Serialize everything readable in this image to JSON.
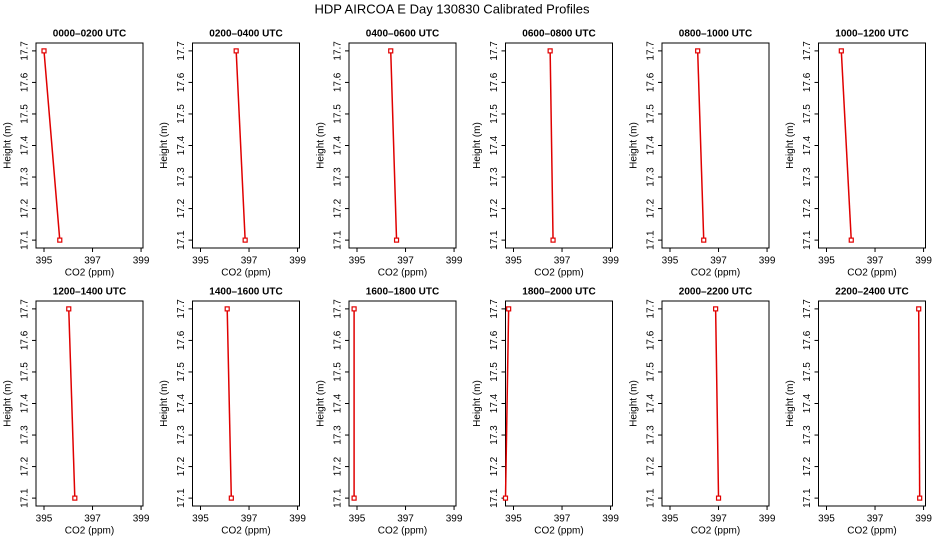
{
  "title": "HDP AIRCOA E  Day 130830  Calibrated Profiles",
  "chart_data": [
    {
      "type": "line",
      "title": "0000–0200 UTC",
      "x_label": "CO2 (ppm)",
      "y_label": "Height (m)",
      "x": [
        395.0,
        395.65
      ],
      "values": [
        17.7,
        17.1
      ],
      "color": "#e00000",
      "xlim": [
        394.67,
        399.08
      ],
      "ylim": [
        17.075,
        17.725
      ],
      "xticks": [
        395,
        397,
        399
      ],
      "yticks": [
        17.1,
        17.2,
        17.3,
        17.4,
        17.5,
        17.6,
        17.7
      ]
    },
    {
      "type": "line",
      "title": "0200–0400 UTC",
      "x_label": "CO2 (ppm)",
      "y_label": "Height (m)",
      "x": [
        396.47,
        396.84
      ],
      "values": [
        17.7,
        17.1
      ],
      "color": "#e00000",
      "xlim": [
        394.67,
        399.08
      ],
      "ylim": [
        17.075,
        17.725
      ],
      "xticks": [
        395,
        397,
        399
      ],
      "yticks": [
        17.1,
        17.2,
        17.3,
        17.4,
        17.5,
        17.6,
        17.7
      ]
    },
    {
      "type": "line",
      "title": "0400–0600 UTC",
      "x_label": "CO2 (ppm)",
      "y_label": "Height (m)",
      "x": [
        396.39,
        396.63
      ],
      "values": [
        17.7,
        17.1
      ],
      "color": "#e00000",
      "xlim": [
        394.67,
        399.08
      ],
      "ylim": [
        17.075,
        17.725
      ],
      "xticks": [
        395,
        397,
        399
      ],
      "yticks": [
        17.1,
        17.2,
        17.3,
        17.4,
        17.5,
        17.6,
        17.7
      ]
    },
    {
      "type": "line",
      "title": "0600–0800 UTC",
      "x_label": "CO2 (ppm)",
      "y_label": "Height (m)",
      "x": [
        396.51,
        396.63
      ],
      "values": [
        17.7,
        17.1
      ],
      "color": "#e00000",
      "xlim": [
        394.67,
        399.08
      ],
      "ylim": [
        17.075,
        17.725
      ],
      "xticks": [
        395,
        397,
        399
      ],
      "yticks": [
        17.1,
        17.2,
        17.3,
        17.4,
        17.5,
        17.6,
        17.7
      ]
    },
    {
      "type": "line",
      "title": "0800–1000 UTC",
      "x_label": "CO2 (ppm)",
      "y_label": "Height (m)",
      "x": [
        396.14,
        396.39
      ],
      "values": [
        17.7,
        17.1
      ],
      "color": "#e00000",
      "xlim": [
        394.67,
        399.08
      ],
      "ylim": [
        17.075,
        17.725
      ],
      "xticks": [
        395,
        397,
        399
      ],
      "yticks": [
        17.1,
        17.2,
        17.3,
        17.4,
        17.5,
        17.6,
        17.7
      ]
    },
    {
      "type": "line",
      "title": "1000–1200 UTC",
      "x_label": "CO2 (ppm)",
      "y_label": "Height (m)",
      "x": [
        395.61,
        396.02
      ],
      "values": [
        17.7,
        17.1
      ],
      "color": "#e00000",
      "xlim": [
        394.67,
        399.08
      ],
      "ylim": [
        17.075,
        17.725
      ],
      "xticks": [
        395,
        397,
        399
      ],
      "yticks": [
        17.1,
        17.2,
        17.3,
        17.4,
        17.5,
        17.6,
        17.7
      ]
    },
    {
      "type": "line",
      "title": "1200–1400 UTC",
      "x_label": "CO2 (ppm)",
      "y_label": "Height (m)",
      "x": [
        396.02,
        396.27
      ],
      "values": [
        17.7,
        17.1
      ],
      "color": "#e00000",
      "xlim": [
        394.67,
        399.08
      ],
      "ylim": [
        17.075,
        17.725
      ],
      "xticks": [
        395,
        397,
        399
      ],
      "yticks": [
        17.1,
        17.2,
        17.3,
        17.4,
        17.5,
        17.6,
        17.7
      ]
    },
    {
      "type": "line",
      "title": "1400–1600 UTC",
      "x_label": "CO2 (ppm)",
      "y_label": "Height (m)",
      "x": [
        396.1,
        396.27
      ],
      "values": [
        17.7,
        17.1
      ],
      "color": "#e00000",
      "xlim": [
        394.67,
        399.08
      ],
      "ylim": [
        17.075,
        17.725
      ],
      "xticks": [
        395,
        397,
        399
      ],
      "yticks": [
        17.1,
        17.2,
        17.3,
        17.4,
        17.5,
        17.6,
        17.7
      ]
    },
    {
      "type": "line",
      "title": "1600–1800 UTC",
      "x_label": "CO2 (ppm)",
      "y_label": "Height (m)",
      "x": [
        394.88,
        394.88
      ],
      "values": [
        17.7,
        17.1
      ],
      "color": "#e00000",
      "xlim": [
        394.67,
        399.08
      ],
      "ylim": [
        17.075,
        17.725
      ],
      "xticks": [
        395,
        397,
        399
      ],
      "yticks": [
        17.1,
        17.2,
        17.3,
        17.4,
        17.5,
        17.6,
        17.7
      ]
    },
    {
      "type": "line",
      "title": "1800–2000 UTC",
      "x_label": "CO2 (ppm)",
      "y_label": "Height (m)",
      "x": [
        394.8,
        394.67
      ],
      "values": [
        17.7,
        17.1
      ],
      "color": "#e00000",
      "xlim": [
        394.67,
        399.08
      ],
      "ylim": [
        17.075,
        17.725
      ],
      "xticks": [
        395,
        397,
        399
      ],
      "yticks": [
        17.1,
        17.2,
        17.3,
        17.4,
        17.5,
        17.6,
        17.7
      ]
    },
    {
      "type": "line",
      "title": "2000–2200 UTC",
      "x_label": "CO2 (ppm)",
      "y_label": "Height (m)",
      "x": [
        396.88,
        397.0
      ],
      "values": [
        17.7,
        17.1
      ],
      "color": "#e00000",
      "xlim": [
        394.67,
        399.08
      ],
      "ylim": [
        17.075,
        17.725
      ],
      "xticks": [
        395,
        397,
        399
      ],
      "yticks": [
        17.1,
        17.2,
        17.3,
        17.4,
        17.5,
        17.6,
        17.7
      ]
    },
    {
      "type": "line",
      "title": "2200–2400 UTC",
      "x_label": "CO2 (ppm)",
      "y_label": "Height (m)",
      "x": [
        398.8,
        398.84
      ],
      "values": [
        17.7,
        17.1
      ],
      "color": "#e00000",
      "xlim": [
        394.67,
        399.08
      ],
      "ylim": [
        17.075,
        17.725
      ],
      "xticks": [
        395,
        397,
        399
      ],
      "yticks": [
        17.1,
        17.2,
        17.3,
        17.4,
        17.5,
        17.6,
        17.7
      ]
    }
  ]
}
